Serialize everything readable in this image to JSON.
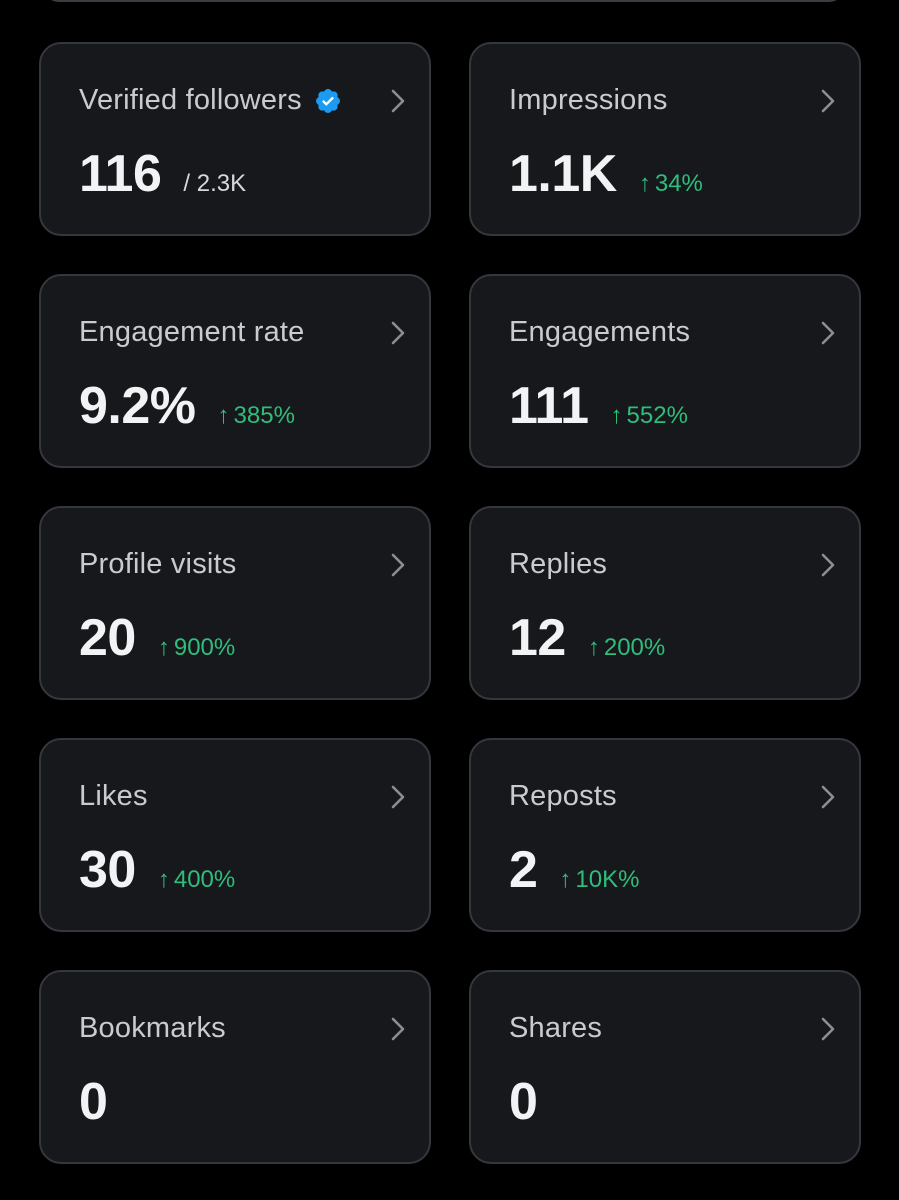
{
  "colors": {
    "background": "#000000",
    "card": "#16181c",
    "card_border": "#34373c",
    "label": "#c8cbcf",
    "value": "#f2f3f4",
    "positive_change": "#2fbd7b",
    "verified_badge": "#1d9bf0"
  },
  "icons": {
    "chevron": "chevron-right-icon",
    "verified": "verified-badge-icon",
    "trend": "arrow-up-icon"
  },
  "metrics": [
    {
      "label": "Verified followers",
      "value": "116",
      "sub_total": "/ 2.3K",
      "change": ""
    },
    {
      "label": "Impressions",
      "value": "1.1K",
      "change": "34%"
    },
    {
      "label": "Engagement rate",
      "value": "9.2%",
      "change": "385%"
    },
    {
      "label": "Engagements",
      "value": "111",
      "change": "552%"
    },
    {
      "label": "Profile visits",
      "value": "20",
      "change": "900%"
    },
    {
      "label": "Replies",
      "value": "12",
      "change": "200%"
    },
    {
      "label": "Likes",
      "value": "30",
      "change": "400%"
    },
    {
      "label": "Reposts",
      "value": "2",
      "change": "10K%"
    },
    {
      "label": "Bookmarks",
      "value": "0",
      "change": ""
    },
    {
      "label": "Shares",
      "value": "0",
      "change": ""
    }
  ]
}
